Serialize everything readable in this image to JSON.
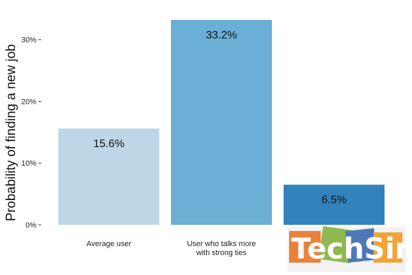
{
  "chart_data": {
    "type": "bar",
    "categories": [
      "Average user",
      "User who talks more\nwith strong ties",
      ""
    ],
    "values": [
      15.6,
      33.2,
      6.5
    ],
    "data_labels": [
      "15.6%",
      "33.2%",
      "6.5%"
    ],
    "colors": [
      "#bdd7e7",
      "#6baed6",
      "#3182bd"
    ],
    "title": "",
    "xlabel": "",
    "ylabel": "Probability of finding a new job",
    "ylim": [
      0,
      33.2
    ],
    "yticks": [
      0,
      10,
      20,
      30
    ],
    "ytick_labels": [
      "0%",
      "10%",
      "20%",
      "30%"
    ],
    "grid": false,
    "legend": "none"
  },
  "watermark": {
    "text": "TechSir"
  }
}
